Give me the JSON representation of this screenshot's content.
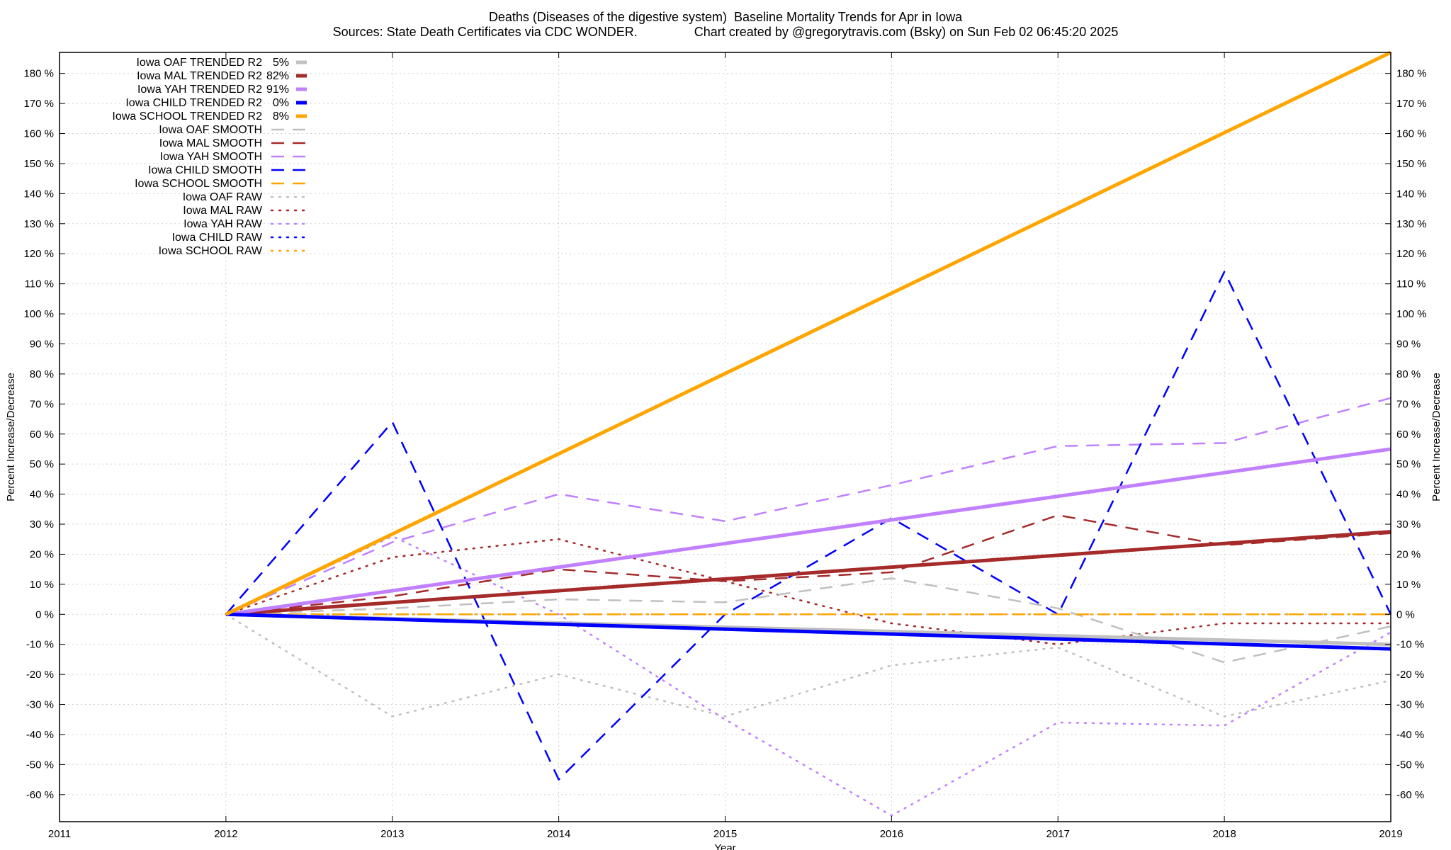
{
  "chart_data": {
    "type": "line",
    "title": "Deaths (Diseases of the digestive system)  Baseline Mortality Trends for Apr in Iowa",
    "subtitle": "Sources: State Death Certificates via CDC WONDER.                Chart created by @gregorytravis.com (Bsky) on Sun Feb 02 06:45:20 2025",
    "xlabel": "Year",
    "ylabel": "Percent Increase/Decrease",
    "xlim": [
      2011,
      2019
    ],
    "ylim": [
      -69,
      187
    ],
    "x_ticks": [
      2011,
      2012,
      2013,
      2014,
      2015,
      2016,
      2017,
      2018,
      2019
    ],
    "y_ticks": [
      -60,
      -50,
      -40,
      -30,
      -20,
      -10,
      0,
      10,
      20,
      30,
      40,
      50,
      60,
      70,
      80,
      90,
      100,
      110,
      120,
      130,
      140,
      150,
      160,
      170,
      180
    ],
    "y_tick_suffix": " %",
    "grid": true,
    "legend_position": "top-left",
    "series": [
      {
        "name": "Iowa OAF TRENDED R2",
        "r2": "5%",
        "color": "#c0c0c0",
        "style": "solid",
        "width": 5,
        "x": [
          2012,
          2019
        ],
        "values": [
          0,
          -10
        ]
      },
      {
        "name": "Iowa MAL TRENDED R2",
        "r2": "82%",
        "color": "#a52a2a",
        "style": "solid",
        "width": 5,
        "x": [
          2012,
          2019
        ],
        "values": [
          0,
          27.5
        ]
      },
      {
        "name": "Iowa YAH TRENDED R2",
        "r2": "91%",
        "color": "#c080ff",
        "style": "solid",
        "width": 5,
        "x": [
          2012,
          2019
        ],
        "values": [
          0,
          55
        ]
      },
      {
        "name": "Iowa CHILD TRENDED R2",
        "r2": "0%",
        "color": "#0000ff",
        "style": "solid",
        "width": 5,
        "x": [
          2012,
          2019
        ],
        "values": [
          0,
          -11.5
        ]
      },
      {
        "name": "Iowa SCHOOL TRENDED R2",
        "r2": "8%",
        "color": "#ffa500",
        "style": "solid",
        "width": 5,
        "x": [
          2012,
          2019
        ],
        "values": [
          0,
          187
        ]
      },
      {
        "name": "Iowa OAF SMOOTH",
        "color": "#c0c0c0",
        "style": "dashed",
        "width": 2.5,
        "x": [
          2012,
          2013,
          2014,
          2015,
          2016,
          2017,
          2018,
          2019
        ],
        "values": [
          0,
          2,
          5,
          4,
          12,
          2,
          -16,
          -4
        ]
      },
      {
        "name": "Iowa MAL SMOOTH",
        "color": "#a52a2a",
        "style": "dashed",
        "width": 2.5,
        "x": [
          2012,
          2013,
          2014,
          2015,
          2016,
          2017,
          2018,
          2019
        ],
        "values": [
          0,
          6,
          15,
          11,
          14,
          33,
          23,
          27
        ]
      },
      {
        "name": "Iowa YAH SMOOTH",
        "color": "#c080ff",
        "style": "dashed",
        "width": 2.5,
        "x": [
          2012,
          2013,
          2014,
          2015,
          2016,
          2017,
          2018,
          2019
        ],
        "values": [
          0,
          24,
          40,
          31,
          43,
          56,
          57,
          72
        ]
      },
      {
        "name": "Iowa CHILD SMOOTH",
        "color": "#0000ff",
        "style": "dashed",
        "width": 2.5,
        "x": [
          2012,
          2013,
          2014,
          2015,
          2016,
          2017,
          2018,
          2019
        ],
        "values": [
          0,
          64,
          -55,
          0,
          32,
          0,
          114,
          0
        ]
      },
      {
        "name": "Iowa SCHOOL SMOOTH",
        "color": "#ffa500",
        "style": "dashed",
        "width": 2.5,
        "x": [
          2012,
          2013,
          2014,
          2015,
          2016,
          2017,
          2018,
          2019
        ],
        "values": [
          0,
          0,
          0,
          0,
          0,
          0,
          0,
          0
        ]
      },
      {
        "name": "Iowa OAF RAW",
        "color": "#c0c0c0",
        "style": "dotted",
        "width": 2.5,
        "x": [
          2012,
          2013,
          2014,
          2015,
          2016,
          2017,
          2018,
          2019
        ],
        "values": [
          0,
          -34,
          -20,
          -34,
          -17,
          -11,
          -34,
          -22
        ]
      },
      {
        "name": "Iowa MAL RAW",
        "color": "#a52a2a",
        "style": "dotted",
        "width": 2.5,
        "x": [
          2012,
          2013,
          2014,
          2015,
          2016,
          2017,
          2018,
          2019
        ],
        "values": [
          0,
          19,
          25,
          11,
          -3,
          -10,
          -3,
          -3
        ]
      },
      {
        "name": "Iowa YAH RAW",
        "color": "#c080ff",
        "style": "dotted",
        "width": 2.5,
        "x": [
          2012,
          2013,
          2014,
          2015,
          2016,
          2017,
          2018,
          2019
        ],
        "values": [
          0,
          26,
          0,
          -35,
          -67,
          -36,
          -37,
          -6
        ]
      },
      {
        "name": "Iowa CHILD RAW",
        "color": "#0000ff",
        "style": "dotted",
        "width": 2.5,
        "x": [
          2012,
          2013,
          2014,
          2015,
          2016,
          2017,
          2018,
          2019
        ],
        "values": [
          0,
          0,
          0,
          0,
          0,
          0,
          0,
          0
        ]
      },
      {
        "name": "Iowa SCHOOL RAW",
        "color": "#ffa500",
        "style": "dotted",
        "width": 2.5,
        "x": [
          2012,
          2013,
          2014,
          2015,
          2016,
          2017,
          2018,
          2019
        ],
        "values": [
          0,
          0,
          0,
          0,
          0,
          0,
          0,
          0
        ]
      }
    ]
  }
}
